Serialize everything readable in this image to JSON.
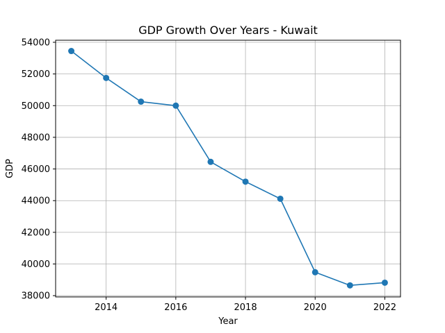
{
  "chart_data": {
    "type": "line",
    "title": "GDP Growth Over Years - Kuwait",
    "xlabel": "Year",
    "ylabel": "GDP",
    "x": [
      2013,
      2014,
      2015,
      2016,
      2017,
      2018,
      2019,
      2020,
      2021,
      2022
    ],
    "series": [
      {
        "values": [
          53450,
          51750,
          50250,
          50000,
          46450,
          45200,
          44120,
          39480,
          38650,
          38820
        ]
      }
    ],
    "xlim": [
      2012.55,
      2022.45
    ],
    "ylim": [
      37920,
      54130
    ],
    "xticks": [
      2014,
      2016,
      2018,
      2020,
      2022
    ],
    "yticks": [
      38000,
      40000,
      42000,
      44000,
      46000,
      48000,
      50000,
      52000,
      54000
    ],
    "grid": true,
    "line_color": "#1f77b4",
    "marker": "circle"
  }
}
